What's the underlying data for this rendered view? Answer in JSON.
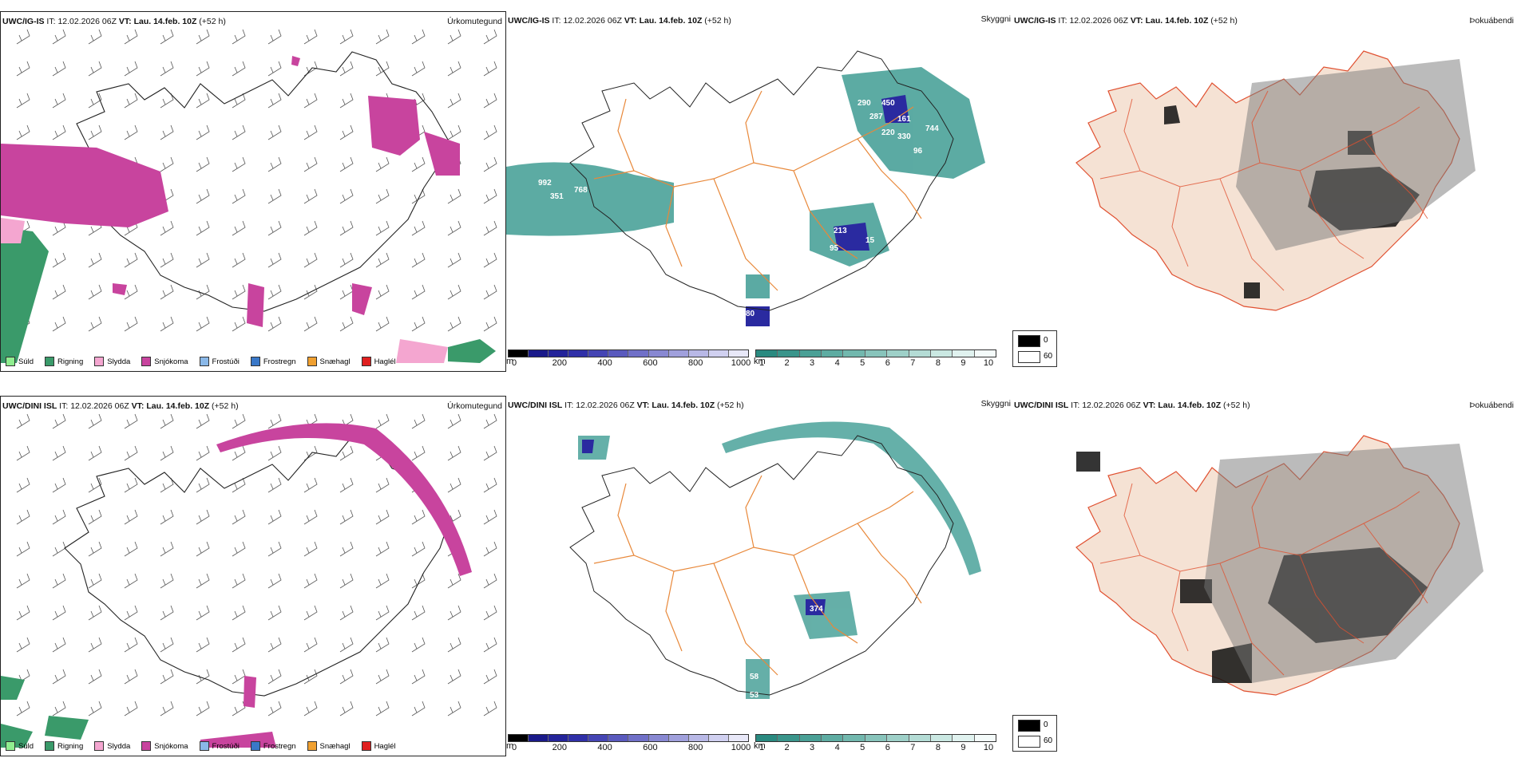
{
  "rows": [
    {
      "model": "UWC/IG-IS",
      "it_label": "IT:",
      "it_value": "12.02.2026 06Z",
      "vt_label": "VT:",
      "vt_value": "Lau. 14.feb. 10Z",
      "lead": "(+52 h)"
    },
    {
      "model": "UWC/DINI ISL",
      "it_label": "IT:",
      "it_value": "12.02.2026 06Z",
      "vt_label": "VT:",
      "vt_value": "Lau. 14.feb. 10Z",
      "lead": "(+52 h)"
    }
  ],
  "panel_titles": {
    "precip": "Úrkomutegund",
    "cloud": "Skyggni",
    "fog": "Þokuábendi"
  },
  "precip_legend": [
    {
      "label": "Súld",
      "color": "#90ee90"
    },
    {
      "label": "Rigning",
      "color": "#3a9a6a"
    },
    {
      "label": "Slydda",
      "color": "#f4a6d0"
    },
    {
      "label": "Snjókoma",
      "color": "#c8449e"
    },
    {
      "label": "Frostúði",
      "color": "#8ab8e8"
    },
    {
      "label": "Frostregn",
      "color": "#3a78c8"
    },
    {
      "label": "Snæhagl",
      "color": "#f0a030"
    },
    {
      "label": "Haglél",
      "color": "#e02020"
    }
  ],
  "cloudbase_colorbar": {
    "unit": "m",
    "ticks": [
      "0",
      "200",
      "400",
      "600",
      "800",
      "1000"
    ],
    "colors": [
      "#000000",
      "#1a1a8a",
      "#24249a",
      "#3030a8",
      "#4545b4",
      "#5a5abe",
      "#7070c8",
      "#8888d2",
      "#a0a0dc",
      "#b8b8e6",
      "#d0d0f0",
      "#e8e8f8"
    ]
  },
  "visibility_colorbar": {
    "unit": "km",
    "ticks": [
      "1",
      "2",
      "3",
      "4",
      "5",
      "6",
      "7",
      "8",
      "9",
      "10"
    ],
    "colors": [
      "#2a8a80",
      "#3a958b",
      "#4aa096",
      "#5eaca2",
      "#72b8ae",
      "#88c4bb",
      "#9ed0c8",
      "#b4dcd5",
      "#cae8e2",
      "#e0f2ef",
      "#f4fbfa"
    ]
  },
  "fog_legend": {
    "items": [
      {
        "label": "0",
        "color": "#000000"
      },
      {
        "label": "60",
        "color": "#ffffff"
      }
    ]
  },
  "cloud_labels_top": [
    "992",
    "351",
    "768",
    "290",
    "450",
    "287",
    "161",
    "220",
    "330",
    "744",
    "96",
    "213",
    "95",
    "15",
    "80"
  ],
  "cloud_labels_bottom": [
    "374",
    "58",
    "53"
  ],
  "colors": {
    "snow": "#c8449e",
    "rain": "#3a9a6a",
    "teal": "#3f9c93",
    "lowcloud": "#2a2aa0",
    "road": "#e8883a",
    "land": "#f5e2d4",
    "coast_red": "#e05030"
  }
}
